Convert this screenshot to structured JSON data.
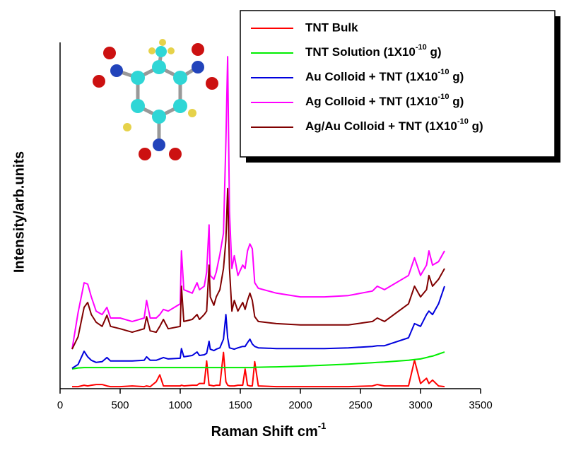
{
  "chart_data": {
    "type": "line",
    "x_label": "Raman Shift cm-1",
    "y_label": "Intensity/arb.units",
    "xlim": [
      0,
      3500
    ],
    "xticks": [
      0,
      500,
      1000,
      1500,
      2000,
      2500,
      3000,
      3500
    ],
    "ylim": [
      0,
      100
    ],
    "x": [
      100,
      150,
      200,
      230,
      260,
      300,
      350,
      390,
      420,
      500,
      600,
      700,
      720,
      750,
      800,
      830,
      860,
      900,
      1000,
      1010,
      1030,
      1100,
      1140,
      1160,
      1200,
      1220,
      1240,
      1250,
      1280,
      1300,
      1330,
      1360,
      1380,
      1395,
      1410,
      1430,
      1450,
      1480,
      1520,
      1540,
      1560,
      1580,
      1600,
      1620,
      1650,
      1800,
      2000,
      2200,
      2400,
      2600,
      2640,
      2700,
      2900,
      2950,
      3000,
      3050,
      3070,
      3100,
      3150,
      3200
    ],
    "series": [
      {
        "name": "TNT Bulk",
        "color": "#ff0000",
        "values": [
          0.6,
          0.6,
          1.0,
          0.8,
          1.0,
          1.2,
          1.2,
          0.8,
          0.6,
          0.6,
          0.8,
          0.6,
          0.8,
          0.6,
          2.0,
          4.0,
          0.8,
          0.8,
          0.8,
          1.0,
          0.8,
          1.0,
          1.0,
          1.5,
          1.5,
          8.0,
          1.0,
          1.0,
          0.8,
          1.0,
          1.0,
          10.5,
          2.0,
          1.0,
          0.8,
          0.8,
          0.8,
          1.0,
          1.0,
          5.7,
          1.0,
          0.8,
          0.8,
          7.8,
          0.8,
          0.6,
          0.6,
          0.6,
          0.6,
          0.8,
          1.2,
          0.8,
          0.8,
          8.2,
          1.5,
          3.0,
          1.5,
          2.5,
          0.8,
          0.6
        ]
      },
      {
        "name": "TNT Solution (1X10-10 g)",
        "color": "#00ee00",
        "values": [
          5.7,
          6.0,
          6.1,
          6.1,
          6.1,
          6.1,
          6.1,
          6.1,
          6.1,
          6.1,
          6.1,
          6.1,
          6.1,
          6.1,
          6.1,
          6.1,
          6.1,
          6.1,
          6.1,
          6.1,
          6.1,
          6.1,
          6.1,
          6.1,
          6.1,
          6.1,
          6.1,
          6.1,
          6.1,
          6.1,
          6.1,
          6.1,
          6.1,
          6.1,
          6.1,
          6.1,
          6.1,
          6.1,
          6.1,
          6.1,
          6.1,
          6.1,
          6.1,
          6.2,
          6.2,
          6.3,
          6.5,
          6.8,
          7.1,
          7.5,
          7.6,
          7.7,
          8.2,
          8.4,
          8.6,
          9.0,
          9.2,
          9.4,
          10.0,
          10.6
        ]
      },
      {
        "name": "Au Colloid + TNT (1X10-10 g)",
        "color": "#0000dd",
        "values": [
          5.9,
          7.0,
          10.8,
          9.2,
          8.2,
          7.6,
          7.8,
          9.0,
          8.0,
          8.0,
          8.0,
          8.2,
          9.2,
          8.2,
          8.2,
          8.6,
          9.0,
          8.6,
          8.8,
          11.6,
          9.2,
          9.6,
          10.6,
          9.6,
          9.8,
          10.2,
          13.7,
          11.4,
          11.0,
          11.4,
          11.8,
          14.3,
          21.4,
          14.7,
          11.8,
          11.6,
          11.4,
          11.8,
          12.2,
          12.2,
          13.3,
          14.3,
          12.9,
          12.2,
          11.8,
          11.6,
          11.6,
          11.6,
          11.8,
          12.2,
          12.4,
          12.4,
          14.7,
          18.8,
          18.0,
          21.4,
          22.4,
          21.4,
          24.5,
          29.6
        ]
      },
      {
        "name": "Ag Colloid + TNT (1X10-10 g)",
        "color": "#ff00ff",
        "values": [
          11.4,
          22,
          30.6,
          30.2,
          26.5,
          22.4,
          21.4,
          23.5,
          20.4,
          20.4,
          19.4,
          20.4,
          25.5,
          20.4,
          20.4,
          21.4,
          22.9,
          22.4,
          24.5,
          39.8,
          28.6,
          27.6,
          30.6,
          28.6,
          29.6,
          33.7,
          47.3,
          32.7,
          31.6,
          33.7,
          38.8,
          44.9,
          71.4,
          95.9,
          51.0,
          34.7,
          38.4,
          32.7,
          35.7,
          34.7,
          39.8,
          41.8,
          40.4,
          30.6,
          29.0,
          27.6,
          26.5,
          26.5,
          26.9,
          28.2,
          29.6,
          28.6,
          32.7,
          37.8,
          32.7,
          35.7,
          39.8,
          35.7,
          36.7,
          39.8
        ]
      },
      {
        "name": "Ag/Au Colloid + TNT (1X10-10 g)",
        "color": "#800000",
        "values": [
          11.4,
          15,
          23.5,
          24.9,
          21.4,
          19.2,
          18.0,
          21.2,
          18.0,
          17.3,
          16.3,
          17.3,
          20.8,
          16.7,
          16.3,
          18.0,
          20.0,
          17.3,
          18.0,
          29.6,
          19.4,
          20.0,
          21.4,
          20.0,
          21.4,
          22.4,
          35.7,
          26.5,
          24.1,
          26.5,
          28.6,
          34.7,
          42.9,
          57.8,
          34.7,
          22.4,
          25.5,
          22.4,
          24.9,
          22.9,
          25.5,
          27.6,
          25.5,
          20.8,
          19.4,
          18.8,
          18.4,
          18.4,
          18.4,
          19.4,
          20.4,
          19.4,
          24.5,
          29.6,
          26.5,
          28.6,
          32.7,
          29.6,
          31.6,
          34.7
        ]
      }
    ]
  }
}
